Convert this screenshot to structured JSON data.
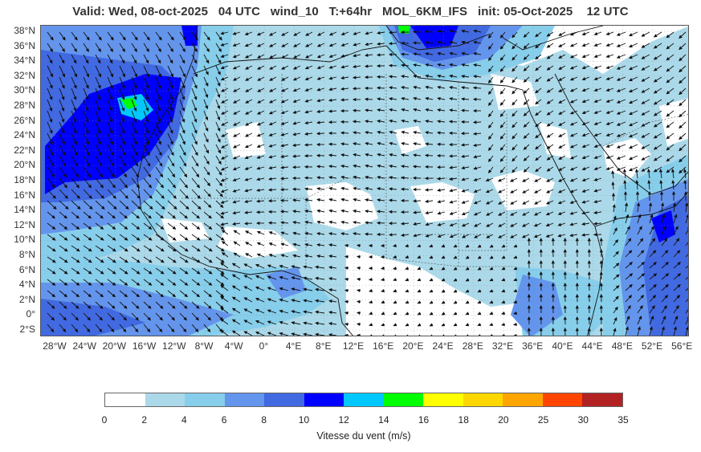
{
  "title": "Valid: Wed, 08-oct-2025   04 UTC   wind_10   T:+64hr   MOL_6KM_IFS   init: 05-Oct-2025    12 UTC",
  "map": {
    "lat_labels": [
      "38°N",
      "36°N",
      "34°N",
      "32°N",
      "30°N",
      "28°N",
      "26°N",
      "24°N",
      "22°N",
      "20°N",
      "18°N",
      "16°N",
      "14°N",
      "12°N",
      "10°N",
      "8°N",
      "6°N",
      "4°N",
      "2°N",
      "0°",
      "2°S"
    ],
    "lon_labels": [
      "28°W",
      "24°W",
      "20°W",
      "16°W",
      "12°W",
      "8°W",
      "4°W",
      "0°",
      "4°E",
      "8°E",
      "12°E",
      "16°E",
      "20°E",
      "24°E",
      "28°E",
      "32°E",
      "36°E",
      "40°E",
      "44°E",
      "48°E",
      "52°E",
      "56°E"
    ],
    "field": "wind_10",
    "region": "North Africa, Mediterranean, Arabian Peninsula, tropical Atlantic"
  },
  "colorbar": {
    "label": "Vitesse du vent (m/s)",
    "ticks": [
      "0",
      "2",
      "4",
      "6",
      "8",
      "10",
      "12",
      "14",
      "16",
      "18",
      "20",
      "25",
      "30",
      "35"
    ],
    "colors": [
      "#ffffff",
      "#abd9e9",
      "#87ceeb",
      "#6495ed",
      "#4169e1",
      "#0000ff",
      "#00c8ff",
      "#00ff00",
      "#ffff00",
      "#ffd700",
      "#ffa500",
      "#ff4500",
      "#b22222"
    ]
  }
}
